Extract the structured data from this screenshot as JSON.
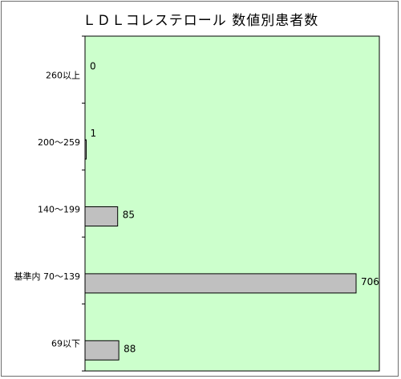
{
  "chart_data": {
    "type": "bar",
    "orientation": "horizontal",
    "title": "ＬＤＬコレステロール 数値別患者数",
    "xlabel": "",
    "ylabel": "",
    "categories": [
      "260以上",
      "200～259",
      "140～199",
      "基準内 70～139",
      "69以下"
    ],
    "values": [
      0,
      1,
      85,
      706,
      88
    ],
    "xlim": [
      0,
      800
    ],
    "grid": false,
    "legend": "none",
    "colors": {
      "plot_background": "#ccffcc",
      "bar_fill": "#c0c0c0",
      "bar_stroke": "#000000"
    }
  }
}
